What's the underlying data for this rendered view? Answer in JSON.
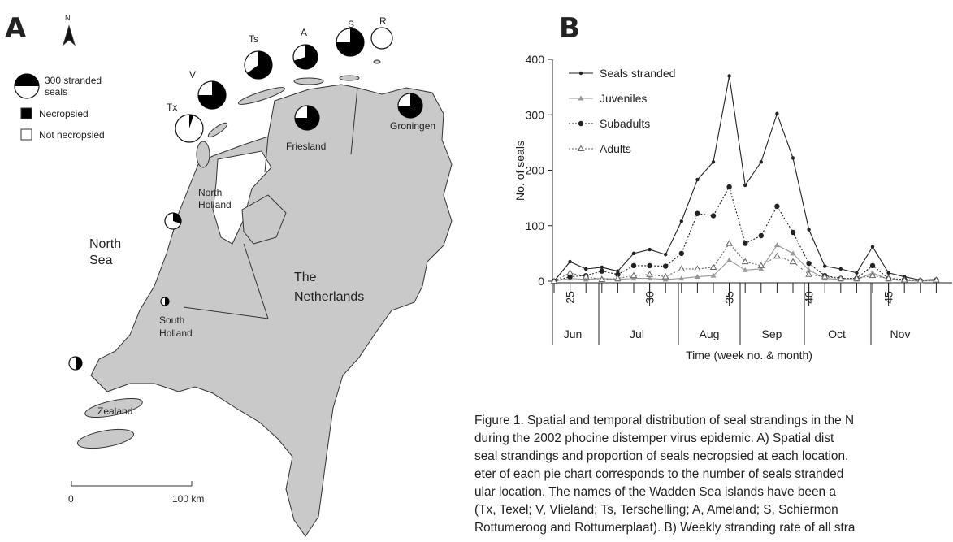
{
  "map": {
    "panel": "A",
    "north": "N",
    "legend": {
      "size_label": [
        "300 stranded",
        "seals"
      ],
      "necropsied": "Necropsied",
      "not_necropsied": "Not necropsied"
    },
    "pies": [
      {
        "label": "Tx",
        "necropsied_pct": 5
      },
      {
        "label": "V",
        "necropsied_pct": 75
      },
      {
        "label": "Ts",
        "necropsied_pct": 65
      },
      {
        "label": "A",
        "necropsied_pct": 70
      },
      {
        "label": "S",
        "necropsied_pct": 75
      },
      {
        "label": "R",
        "necropsied_pct": 0
      },
      {
        "necropsied_pct": 75
      },
      {
        "necropsied_pct": 75
      },
      {
        "necropsied_pct": 30
      },
      {
        "necropsied_pct": 50
      },
      {
        "necropsied_pct": 50
      }
    ],
    "sea": [
      "North",
      "Sea"
    ],
    "country": [
      "The",
      "Netherlands"
    ],
    "provinces": {
      "friesland": "Friesland",
      "groningen": "Groningen",
      "north_holland": [
        "North",
        "Holland"
      ],
      "south_holland": [
        "South",
        "Holland"
      ],
      "zealand": "Zealand"
    },
    "scale": [
      "0",
      "100 km"
    ]
  },
  "chart_data": {
    "type": "line",
    "panel": "B",
    "ylabel": "No. of seals",
    "xlabel": "Time (week no. & month)",
    "months": [
      "Jun",
      "Jul",
      "Aug",
      "Sep",
      "Oct",
      "Nov"
    ],
    "x": [
      24,
      25,
      26,
      27,
      28,
      29,
      30,
      31,
      32,
      33,
      34,
      35,
      36,
      37,
      38,
      39,
      40,
      41,
      42,
      43,
      44,
      45,
      46,
      47,
      48
    ],
    "xlim": [
      24,
      49
    ],
    "xticks": [
      25,
      30,
      35,
      40,
      45
    ],
    "ylim": [
      0,
      400
    ],
    "yticks": [
      0,
      100,
      200,
      300,
      400
    ],
    "series": [
      {
        "name": "Seals stranded",
        "color": "#222222",
        "dash": "none",
        "marker": "dot",
        "values": [
          0,
          35,
          22,
          25,
          18,
          50,
          57,
          48,
          108,
          183,
          215,
          370,
          173,
          215,
          302,
          222,
          93,
          27,
          22,
          15,
          62,
          15,
          8,
          2,
          3
        ]
      },
      {
        "name": "Juveniles",
        "color": "#999999",
        "dash": "none",
        "marker": "triangle",
        "values": [
          0,
          5,
          3,
          5,
          3,
          5,
          5,
          3,
          5,
          8,
          10,
          38,
          20,
          22,
          65,
          50,
          20,
          5,
          3,
          3,
          15,
          3,
          1,
          0,
          1
        ]
      },
      {
        "name": "Subadults",
        "color": "#222222",
        "dash": "2 2",
        "marker": "bigdot",
        "values": [
          0,
          8,
          10,
          18,
          12,
          28,
          28,
          27,
          50,
          122,
          118,
          170,
          68,
          82,
          135,
          88,
          32,
          10,
          5,
          5,
          28,
          5,
          3,
          1,
          2
        ]
      },
      {
        "name": "Adults",
        "color": "#666666",
        "dash": "2 2",
        "marker": "opentriangle",
        "values": [
          0,
          15,
          8,
          3,
          5,
          10,
          12,
          8,
          22,
          22,
          25,
          68,
          35,
          28,
          45,
          35,
          12,
          8,
          5,
          5,
          10,
          5,
          2,
          1,
          2
        ]
      }
    ]
  },
  "caption": {
    "lines": [
      "Figure 1. Spatial and temporal distribution of seal strandings in the N",
      "during the 2002 phocine distemper virus epidemic. A) Spatial dist",
      "seal strandings and proportion of seals necropsied at each location.",
      "eter of each pie chart corresponds to the number of seals stranded",
      "ular location. The names of the Wadden Sea islands have been a",
      "(Tx, Texel; V, Vlieland; Ts, Terschelling; A, Ameland; S, Schiermon",
      "Rottumeroog and Rottumerplaat). B) Weekly stranding rate of all stra"
    ]
  }
}
